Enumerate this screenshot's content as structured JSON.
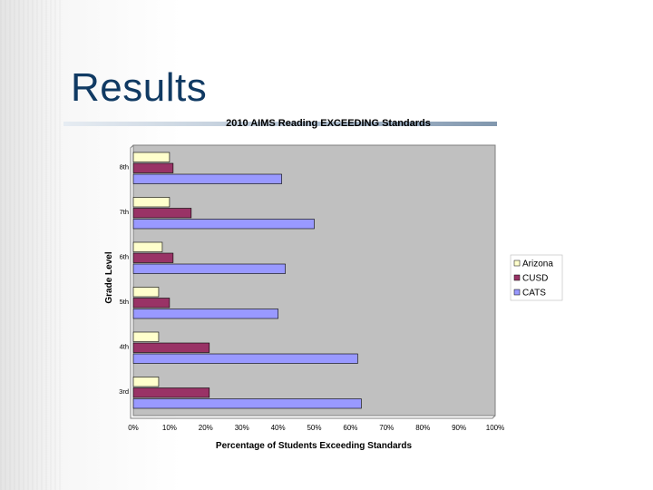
{
  "slide": {
    "title": "Results"
  },
  "colors": {
    "arizona": "#ffffcc",
    "cusd": "#993366",
    "cats": "#9999ff",
    "plot_bg": "#c0c0c0",
    "title_text": "#103a63"
  },
  "chart_data": {
    "type": "bar",
    "orientation": "horizontal",
    "title": "2010 AIMS Reading EXCEEDING Standards",
    "xlabel": "Percentage of Students Exceeding Standards",
    "ylabel": "Grade Level",
    "categories": [
      "8th",
      "7th",
      "6th",
      "5th",
      "4th",
      "3rd"
    ],
    "series": [
      {
        "name": "Arizona",
        "color_key": "arizona",
        "values": [
          10,
          10,
          8,
          7,
          7,
          7
        ]
      },
      {
        "name": "CUSD",
        "color_key": "cusd",
        "values": [
          11,
          16,
          11,
          10,
          21,
          21
        ]
      },
      {
        "name": "CATS",
        "color_key": "cats",
        "values": [
          41,
          50,
          42,
          40,
          62,
          63
        ]
      }
    ],
    "xlim": [
      0,
      100
    ],
    "x_ticks": [
      "0%",
      "10%",
      "20%",
      "30%",
      "40%",
      "50%",
      "60%",
      "70%",
      "80%",
      "90%",
      "100%"
    ],
    "grid": false,
    "legend_position": "right"
  }
}
